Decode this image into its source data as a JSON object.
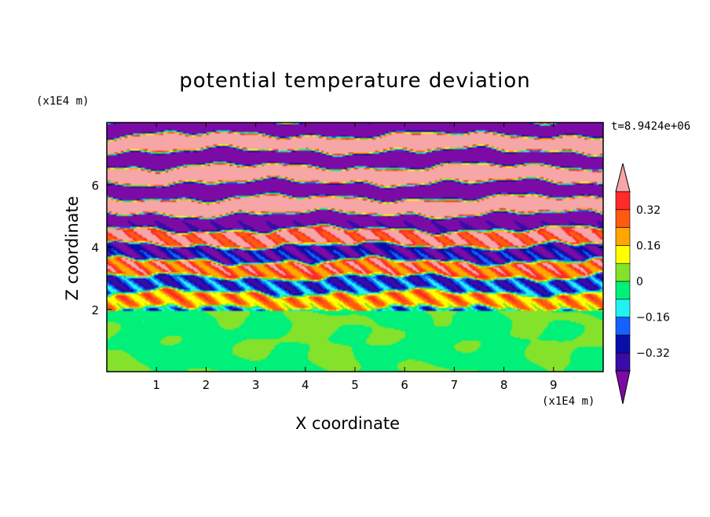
{
  "chart_data": {
    "type": "heatmap",
    "title": "potential temperature deviation",
    "xlabel": "X coordinate",
    "ylabel": "Z coordinate",
    "x_unit": "(x1E4 m)",
    "z_unit": "(x1E4 m)",
    "timestamp": "t=8.9424e+06",
    "xlim": [
      0,
      10
    ],
    "ylim": [
      0,
      8
    ],
    "x_ticks": [
      "1",
      "2",
      "3",
      "4",
      "5",
      "6",
      "7",
      "8",
      "9"
    ],
    "y_ticks": [
      "2",
      "4",
      "6"
    ],
    "colorbar": {
      "levels": [
        -0.4,
        -0.32,
        -0.24,
        -0.16,
        -0.08,
        0,
        0.08,
        0.16,
        0.24,
        0.32,
        0.4
      ],
      "labels": [
        "0.32",
        "0.16",
        "0",
        "−0.16",
        "−0.32"
      ],
      "label_values": [
        0.32,
        0.16,
        0,
        -0.16,
        -0.32
      ],
      "colors": [
        "#7c0ba6",
        "#3a0ba6",
        "#0a0ea8",
        "#1560ff",
        "#22f2f2",
        "#00f07a",
        "#84e22a",
        "#ffff00",
        "#ffa600",
        "#ff5a10",
        "#ff2a2a",
        "#f6a6a6"
      ],
      "extend": "both"
    },
    "field_description": "stratified upper region (z > 2) with alternating warm/cold horizontal layers; turbulent mixed layer (z < 2) near zero deviation"
  }
}
